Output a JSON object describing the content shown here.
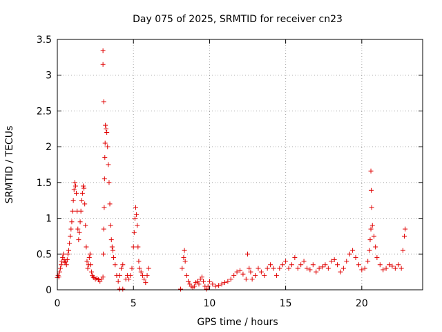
{
  "chart_data": {
    "type": "scatter",
    "title": "Day 075 of 2025, SRMTID for receiver cn23",
    "xlabel": "GPS time / hours",
    "ylabel": "SRMTID / TECUs",
    "xlim": [
      0,
      24
    ],
    "ylim": [
      0,
      3.5
    ],
    "xticks": [
      0,
      5,
      10,
      15,
      20
    ],
    "xtick_labels": [
      "0",
      "5",
      "10",
      "15",
      "20"
    ],
    "yticks": [
      0,
      0.5,
      1,
      1.5,
      2,
      2.5,
      3,
      3.5
    ],
    "ytick_labels": [
      "0",
      "0.5",
      "1",
      "1.5",
      "2",
      "2.5",
      "3",
      "3.5"
    ],
    "grid": true,
    "marker": "+",
    "series": [
      {
        "name": "SRMTID",
        "color": "#e00000",
        "points": [
          [
            0.0,
            0.17
          ],
          [
            0.05,
            0.2
          ],
          [
            0.1,
            0.18
          ],
          [
            0.15,
            0.25
          ],
          [
            0.2,
            0.3
          ],
          [
            0.25,
            0.35
          ],
          [
            0.3,
            0.4
          ],
          [
            0.35,
            0.45
          ],
          [
            0.4,
            0.5
          ],
          [
            0.45,
            0.42
          ],
          [
            0.5,
            0.38
          ],
          [
            0.55,
            0.4
          ],
          [
            0.6,
            0.35
          ],
          [
            0.65,
            0.42
          ],
          [
            0.7,
            0.5
          ],
          [
            0.75,
            0.55
          ],
          [
            0.8,
            0.65
          ],
          [
            0.85,
            0.75
          ],
          [
            0.9,
            0.85
          ],
          [
            0.95,
            0.95
          ],
          [
            1.0,
            1.1
          ],
          [
            1.05,
            1.25
          ],
          [
            1.1,
            1.4
          ],
          [
            1.15,
            1.5
          ],
          [
            1.2,
            1.45
          ],
          [
            1.25,
            1.35
          ],
          [
            1.3,
            1.1
          ],
          [
            1.35,
            0.85
          ],
          [
            1.4,
            0.7
          ],
          [
            1.45,
            0.8
          ],
          [
            1.5,
            0.95
          ],
          [
            1.55,
            1.1
          ],
          [
            1.6,
            1.25
          ],
          [
            1.65,
            1.35
          ],
          [
            1.7,
            1.45
          ],
          [
            1.75,
            1.42
          ],
          [
            1.8,
            1.2
          ],
          [
            1.85,
            0.9
          ],
          [
            1.9,
            0.6
          ],
          [
            1.95,
            0.4
          ],
          [
            2.0,
            0.3
          ],
          [
            2.05,
            0.35
          ],
          [
            2.1,
            0.45
          ],
          [
            2.15,
            0.5
          ],
          [
            2.2,
            0.35
          ],
          [
            2.25,
            0.25
          ],
          [
            2.3,
            0.2
          ],
          [
            2.35,
            0.18
          ],
          [
            2.4,
            0.17
          ],
          [
            2.5,
            0.15
          ],
          [
            2.6,
            0.16
          ],
          [
            2.7,
            0.14
          ],
          [
            2.8,
            0.12
          ],
          [
            2.9,
            0.15
          ],
          [
            3.0,
            0.18
          ],
          [
            3.02,
            0.5
          ],
          [
            3.05,
            0.85
          ],
          [
            3.08,
            1.15
          ],
          [
            3.1,
            1.55
          ],
          [
            3.12,
            1.85
          ],
          [
            3.14,
            2.05
          ],
          [
            3.16,
            2.3
          ],
          [
            3.05,
            2.63
          ],
          [
            3.0,
            3.15
          ],
          [
            3.0,
            3.34
          ],
          [
            3.2,
            2.25
          ],
          [
            3.25,
            2.2
          ],
          [
            3.3,
            2.0
          ],
          [
            3.35,
            1.75
          ],
          [
            3.4,
            1.5
          ],
          [
            3.45,
            1.2
          ],
          [
            3.5,
            0.9
          ],
          [
            3.55,
            0.7
          ],
          [
            3.6,
            0.6
          ],
          [
            3.65,
            0.55
          ],
          [
            3.7,
            0.45
          ],
          [
            3.8,
            0.35
          ],
          [
            3.9,
            0.2
          ],
          [
            4.0,
            0.12
          ],
          [
            4.1,
            0.2
          ],
          [
            4.2,
            0.3
          ],
          [
            4.3,
            0.35
          ],
          [
            4.1,
            0.01
          ],
          [
            4.3,
            0.01
          ],
          [
            4.5,
            0.15
          ],
          [
            4.6,
            0.2
          ],
          [
            4.7,
            0.15
          ],
          [
            4.8,
            0.2
          ],
          [
            4.9,
            0.3
          ],
          [
            5.0,
            0.6
          ],
          [
            5.05,
            0.8
          ],
          [
            5.1,
            1.0
          ],
          [
            5.15,
            1.15
          ],
          [
            5.2,
            1.05
          ],
          [
            5.25,
            0.9
          ],
          [
            5.3,
            0.6
          ],
          [
            5.35,
            0.4
          ],
          [
            5.4,
            0.3
          ],
          [
            5.5,
            0.25
          ],
          [
            5.6,
            0.2
          ],
          [
            5.7,
            0.15
          ],
          [
            5.8,
            0.1
          ],
          [
            5.9,
            0.2
          ],
          [
            6.0,
            0.3
          ],
          [
            8.1,
            0.01
          ],
          [
            8.2,
            0.3
          ],
          [
            8.3,
            0.45
          ],
          [
            8.35,
            0.55
          ],
          [
            8.4,
            0.4
          ],
          [
            8.5,
            0.2
          ],
          [
            8.6,
            0.12
          ],
          [
            8.7,
            0.08
          ],
          [
            8.8,
            0.05
          ],
          [
            8.9,
            0.03
          ],
          [
            9.0,
            0.05
          ],
          [
            9.1,
            0.1
          ],
          [
            9.2,
            0.12
          ],
          [
            9.3,
            0.08
          ],
          [
            9.4,
            0.15
          ],
          [
            9.5,
            0.18
          ],
          [
            9.6,
            0.12
          ],
          [
            9.7,
            0.05
          ],
          [
            9.8,
            0.01
          ],
          [
            9.9,
            0.05
          ],
          [
            10.0,
            0.12
          ],
          [
            10.2,
            0.08
          ],
          [
            10.4,
            0.05
          ],
          [
            10.6,
            0.06
          ],
          [
            10.8,
            0.08
          ],
          [
            11.0,
            0.1
          ],
          [
            11.2,
            0.12
          ],
          [
            11.4,
            0.15
          ],
          [
            11.6,
            0.2
          ],
          [
            11.8,
            0.25
          ],
          [
            12.0,
            0.27
          ],
          [
            12.2,
            0.22
          ],
          [
            12.4,
            0.15
          ],
          [
            12.5,
            0.5
          ],
          [
            12.6,
            0.3
          ],
          [
            12.7,
            0.25
          ],
          [
            12.8,
            0.15
          ],
          [
            13.0,
            0.2
          ],
          [
            13.2,
            0.3
          ],
          [
            13.4,
            0.25
          ],
          [
            13.6,
            0.2
          ],
          [
            13.8,
            0.3
          ],
          [
            14.0,
            0.35
          ],
          [
            14.2,
            0.3
          ],
          [
            14.4,
            0.2
          ],
          [
            14.6,
            0.3
          ],
          [
            14.8,
            0.35
          ],
          [
            15.0,
            0.4
          ],
          [
            15.2,
            0.3
          ],
          [
            15.4,
            0.35
          ],
          [
            15.6,
            0.45
          ],
          [
            15.8,
            0.3
          ],
          [
            16.0,
            0.35
          ],
          [
            16.2,
            0.4
          ],
          [
            16.4,
            0.3
          ],
          [
            16.6,
            0.28
          ],
          [
            16.8,
            0.35
          ],
          [
            17.0,
            0.25
          ],
          [
            17.2,
            0.3
          ],
          [
            17.4,
            0.32
          ],
          [
            17.6,
            0.35
          ],
          [
            17.8,
            0.3
          ],
          [
            18.0,
            0.4
          ],
          [
            18.2,
            0.42
          ],
          [
            18.4,
            0.35
          ],
          [
            18.6,
            0.25
          ],
          [
            18.8,
            0.3
          ],
          [
            19.0,
            0.4
          ],
          [
            19.2,
            0.5
          ],
          [
            19.4,
            0.55
          ],
          [
            19.6,
            0.45
          ],
          [
            19.8,
            0.35
          ],
          [
            20.0,
            0.28
          ],
          [
            20.2,
            0.3
          ],
          [
            20.4,
            0.4
          ],
          [
            20.5,
            0.55
          ],
          [
            20.55,
            0.7
          ],
          [
            20.6,
            0.85
          ],
          [
            20.65,
            1.15
          ],
          [
            20.62,
            1.39
          ],
          [
            20.6,
            1.66
          ],
          [
            20.7,
            0.9
          ],
          [
            20.8,
            0.75
          ],
          [
            20.9,
            0.6
          ],
          [
            21.0,
            0.45
          ],
          [
            21.2,
            0.35
          ],
          [
            21.4,
            0.28
          ],
          [
            21.6,
            0.3
          ],
          [
            21.8,
            0.35
          ],
          [
            22.0,
            0.33
          ],
          [
            22.2,
            0.3
          ],
          [
            22.4,
            0.35
          ],
          [
            22.6,
            0.3
          ],
          [
            22.7,
            0.55
          ],
          [
            22.8,
            0.75
          ],
          [
            22.85,
            0.85
          ]
        ]
      }
    ]
  }
}
